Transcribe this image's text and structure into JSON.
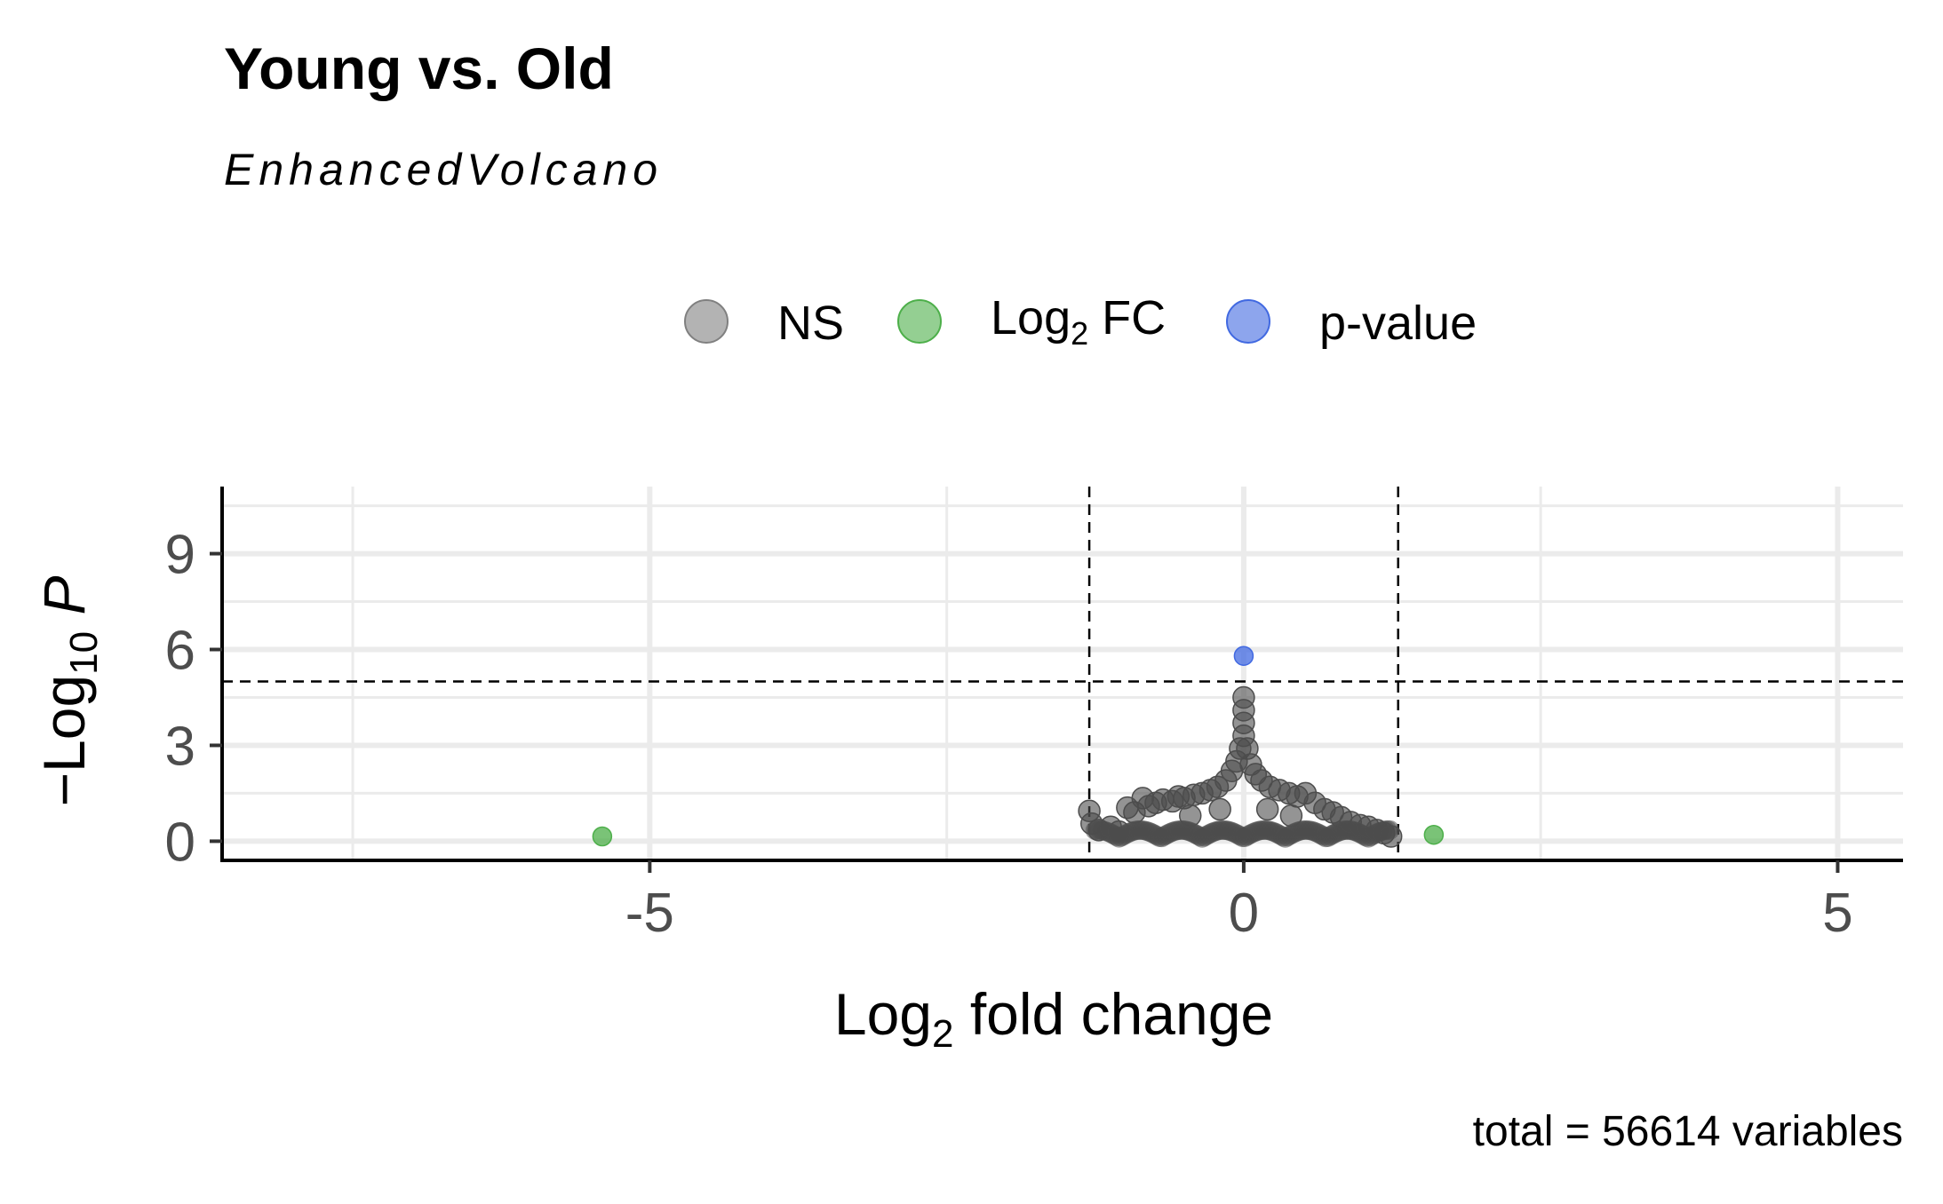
{
  "chart_data": {
    "type": "scatter",
    "title": "Young vs. Old",
    "subtitle": "EnhancedVolcano",
    "caption": "total = 56614 variables",
    "xlabel": {
      "main": "Log",
      "sub": "2",
      "rest": " fold change"
    },
    "ylabel": {
      "minus": "−",
      "main": "Log",
      "sub": "10",
      "rest": " P"
    },
    "xlim": [
      -8.6,
      5.55
    ],
    "ylim": [
      -0.6,
      11.1
    ],
    "x_ticks": [
      -5,
      0,
      5
    ],
    "x_tick_labels": [
      "-5",
      "0",
      "5"
    ],
    "y_ticks": [
      0,
      3,
      6,
      9
    ],
    "y_tick_labels": [
      "0",
      "3",
      "6",
      "9"
    ],
    "x_minor_grid": [
      -7.5,
      -2.5,
      2.5
    ],
    "y_minor_grid": [
      1.5,
      4.5,
      7.5,
      10.5
    ],
    "fc_cutoff": 1.3,
    "p_cutoff": 5,
    "grid": true,
    "legend_position": "top",
    "legend": [
      {
        "key": "ns",
        "label": "NS",
        "color": "#808080"
      },
      {
        "key": "fc",
        "label": "Log",
        "sub": "2",
        "rest": " FC",
        "color": "#4DAF4A"
      },
      {
        "key": "p",
        "label": "p-value",
        "color": "#4169E1"
      }
    ],
    "series": [
      {
        "name": "NS",
        "color": "#4d4d4d",
        "points": [
          [
            -1.3,
            0.95
          ],
          [
            -1.28,
            0.55
          ],
          [
            -1.22,
            0.35
          ],
          [
            -1.12,
            0.45
          ],
          [
            -1.05,
            0.3
          ],
          [
            -0.98,
            1.05
          ],
          [
            -0.92,
            0.9
          ],
          [
            -0.85,
            1.35
          ],
          [
            -0.8,
            1.1
          ],
          [
            -0.74,
            1.2
          ],
          [
            -0.68,
            1.3
          ],
          [
            -0.6,
            1.25
          ],
          [
            -0.55,
            1.4
          ],
          [
            -0.5,
            1.35
          ],
          [
            -0.42,
            1.45
          ],
          [
            -0.35,
            1.5
          ],
          [
            -0.28,
            1.6
          ],
          [
            -0.22,
            1.7
          ],
          [
            -0.15,
            1.9
          ],
          [
            -0.1,
            2.2
          ],
          [
            -0.06,
            2.5
          ],
          [
            -0.03,
            2.9
          ],
          [
            0.0,
            3.3
          ],
          [
            0.0,
            3.7
          ],
          [
            0.0,
            4.1
          ],
          [
            0.0,
            4.5
          ],
          [
            0.03,
            2.9
          ],
          [
            0.06,
            2.4
          ],
          [
            0.1,
            2.1
          ],
          [
            0.15,
            1.9
          ],
          [
            0.22,
            1.7
          ],
          [
            0.3,
            1.6
          ],
          [
            0.38,
            1.5
          ],
          [
            0.45,
            1.4
          ],
          [
            0.52,
            1.5
          ],
          [
            0.6,
            1.2
          ],
          [
            0.68,
            1.0
          ],
          [
            0.75,
            0.9
          ],
          [
            0.82,
            0.75
          ],
          [
            0.9,
            0.6
          ],
          [
            0.98,
            0.5
          ],
          [
            1.05,
            0.45
          ],
          [
            1.12,
            0.35
          ],
          [
            1.18,
            0.25
          ],
          [
            1.24,
            0.15
          ],
          [
            -0.45,
            0.8
          ],
          [
            0.4,
            0.8
          ],
          [
            -0.2,
            1.0
          ],
          [
            0.2,
            1.0
          ]
        ]
      },
      {
        "name": "Log2 FC",
        "color": "#4DAF4A",
        "points": [
          [
            -5.4,
            0.15
          ],
          [
            1.6,
            0.2
          ]
        ]
      },
      {
        "name": "p-value",
        "color": "#4169E1",
        "points": [
          [
            0.0,
            5.8
          ]
        ]
      }
    ]
  }
}
